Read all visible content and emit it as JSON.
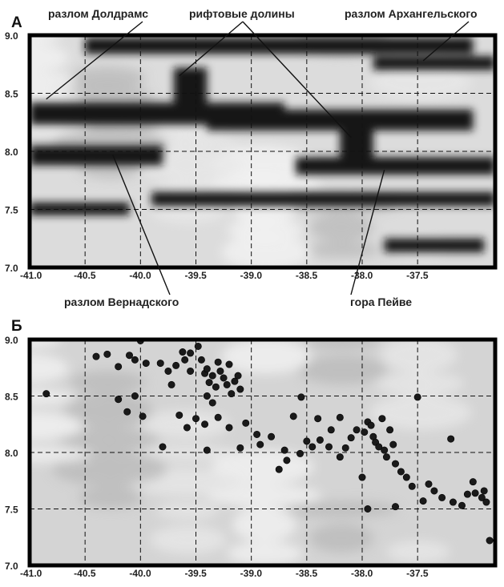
{
  "chart_data": [
    {
      "type": "heatmap",
      "panel_label": "А",
      "xlim": [
        -41.0,
        -36.8
      ],
      "ylim": [
        7.0,
        9.0
      ],
      "x_ticks": [
        "-41.0",
        "-40.5",
        "-40.0",
        "-39.5",
        "-39.0",
        "-38.5",
        "-38.0",
        "-37.5"
      ],
      "y_ticks": [
        "7.0",
        "7.5",
        "8.0",
        "8.5",
        "9.0"
      ],
      "grid": true,
      "bands": [
        {
          "x1": -41.0,
          "x2": -38.7,
          "y_top": 8.42,
          "y_bot": 8.23
        },
        {
          "x1": -39.4,
          "x2": -37.0,
          "y_top": 8.36,
          "y_bot": 8.18
        },
        {
          "x1": -41.0,
          "x2": -39.8,
          "y_top": 8.05,
          "y_bot": 7.88
        },
        {
          "x1": -38.6,
          "x2": -36.8,
          "y_top": 7.95,
          "y_bot": 7.8
        },
        {
          "x1": -39.9,
          "x2": -36.8,
          "y_top": 7.65,
          "y_bot": 7.53
        },
        {
          "x1": -41.0,
          "x2": -40.1,
          "y_top": 7.56,
          "y_bot": 7.45
        },
        {
          "x1": -40.5,
          "x2": -37.0,
          "y_top": 8.98,
          "y_bot": 8.84
        },
        {
          "x1": -37.9,
          "x2": -36.8,
          "y_top": 8.82,
          "y_bot": 8.7
        },
        {
          "x1": -37.8,
          "x2": -36.9,
          "y_top": 7.25,
          "y_bot": 7.13
        },
        {
          "x1": -39.7,
          "x2": -39.4,
          "y_top": 8.72,
          "y_bot": 8.4
        },
        {
          "x1": -38.2,
          "x2": -37.9,
          "y_top": 8.2,
          "y_bot": 7.9
        }
      ],
      "annotations": [
        {
          "text": "разлом Долдрамс",
          "x": -40.85,
          "y": 8.45
        },
        {
          "text": "рифтовые долины",
          "x": -39.65,
          "y": 8.65
        },
        {
          "text": "рифтовые долины",
          "x": -38.1,
          "y": 8.12
        },
        {
          "text": "разлом Архангельского",
          "x": -37.45,
          "y": 8.78
        },
        {
          "text": "разлом Вернадского",
          "x": -40.25,
          "y": 7.97
        },
        {
          "text": "гора Пейве",
          "x": -37.8,
          "y": 7.84
        }
      ]
    },
    {
      "type": "scatter",
      "panel_label": "Б",
      "xlim": [
        -41.0,
        -36.8
      ],
      "ylim": [
        7.0,
        9.0
      ],
      "x_ticks": [
        "-41.0",
        "-40.5",
        "-40.0",
        "-39.5",
        "-39.0",
        "-38.5",
        "-38.0",
        "-37.5"
      ],
      "y_ticks": [
        "7.0",
        "7.5",
        "8.0",
        "8.5",
        "9.0"
      ],
      "grid": true,
      "points": [
        [
          -40.85,
          8.52
        ],
        [
          -40.3,
          8.87
        ],
        [
          -40.2,
          8.76
        ],
        [
          -40.1,
          8.86
        ],
        [
          -40.05,
          8.82
        ],
        [
          -40.0,
          8.99
        ],
        [
          -39.95,
          8.79
        ],
        [
          -39.82,
          8.79
        ],
        [
          -39.75,
          8.72
        ],
        [
          -39.72,
          8.6
        ],
        [
          -39.68,
          8.77
        ],
        [
          -39.6,
          8.82
        ],
        [
          -39.55,
          8.88
        ],
        [
          -39.55,
          8.72
        ],
        [
          -39.48,
          8.94
        ],
        [
          -39.45,
          8.82
        ],
        [
          -39.42,
          8.7
        ],
        [
          -39.4,
          8.74
        ],
        [
          -39.38,
          8.62
        ],
        [
          -39.35,
          8.68
        ],
        [
          -39.32,
          8.58
        ],
        [
          -39.3,
          8.8
        ],
        [
          -39.28,
          8.72
        ],
        [
          -39.25,
          8.66
        ],
        [
          -39.22,
          8.6
        ],
        [
          -39.2,
          8.78
        ],
        [
          -39.18,
          8.52
        ],
        [
          -39.15,
          8.63
        ],
        [
          -39.12,
          8.68
        ],
        [
          -39.1,
          8.56
        ],
        [
          -39.35,
          8.44
        ],
        [
          -39.4,
          8.5
        ],
        [
          -39.5,
          8.3
        ],
        [
          -39.58,
          8.22
        ],
        [
          -39.65,
          8.33
        ],
        [
          -39.3,
          8.31
        ],
        [
          -39.42,
          8.25
        ],
        [
          -39.2,
          8.22
        ],
        [
          -39.05,
          8.26
        ],
        [
          -38.95,
          8.16
        ],
        [
          -38.92,
          8.07
        ],
        [
          -38.82,
          8.14
        ],
        [
          -38.7,
          8.02
        ],
        [
          -38.62,
          8.32
        ],
        [
          -38.55,
          8.49
        ],
        [
          -38.5,
          8.1
        ],
        [
          -38.45,
          8.05
        ],
        [
          -38.4,
          8.3
        ],
        [
          -38.38,
          8.11
        ],
        [
          -38.3,
          8.05
        ],
        [
          -38.28,
          8.2
        ],
        [
          -38.2,
          8.31
        ],
        [
          -38.1,
          8.13
        ],
        [
          -38.05,
          8.2
        ],
        [
          -37.98,
          8.18
        ],
        [
          -37.95,
          8.27
        ],
        [
          -37.92,
          8.24
        ],
        [
          -37.9,
          8.14
        ],
        [
          -37.88,
          8.09
        ],
        [
          -37.85,
          8.05
        ],
        [
          -37.82,
          8.3
        ],
        [
          -37.8,
          8.02
        ],
        [
          -37.78,
          7.96
        ],
        [
          -37.75,
          8.2
        ],
        [
          -37.72,
          8.07
        ],
        [
          -37.7,
          7.9
        ],
        [
          -37.65,
          7.83
        ],
        [
          -37.6,
          7.78
        ],
        [
          -37.55,
          7.7
        ],
        [
          -37.5,
          8.49
        ],
        [
          -37.45,
          7.57
        ],
        [
          -37.4,
          7.72
        ],
        [
          -37.35,
          7.66
        ],
        [
          -37.28,
          7.6
        ],
        [
          -37.2,
          8.12
        ],
        [
          -37.18,
          7.56
        ],
        [
          -37.1,
          7.53
        ],
        [
          -37.05,
          7.63
        ],
        [
          -36.98,
          7.64
        ],
        [
          -36.92,
          7.6
        ],
        [
          -36.88,
          7.56
        ],
        [
          -36.85,
          7.22
        ],
        [
          -36.9,
          7.66
        ],
        [
          -37.0,
          7.74
        ],
        [
          -37.95,
          7.5
        ],
        [
          -38.0,
          7.78
        ],
        [
          -38.2,
          7.96
        ],
        [
          -39.1,
          8.04
        ],
        [
          -39.4,
          8.02
        ],
        [
          -39.8,
          8.05
        ],
        [
          -40.12,
          8.36
        ],
        [
          -40.05,
          8.5
        ],
        [
          -39.62,
          8.89
        ],
        [
          -38.75,
          7.85
        ],
        [
          -38.68,
          7.93
        ],
        [
          -38.56,
          7.99
        ],
        [
          -38.15,
          8.04
        ],
        [
          -37.7,
          7.52
        ],
        [
          -40.2,
          8.47
        ],
        [
          -40.4,
          8.85
        ],
        [
          -39.98,
          8.32
        ]
      ]
    }
  ]
}
